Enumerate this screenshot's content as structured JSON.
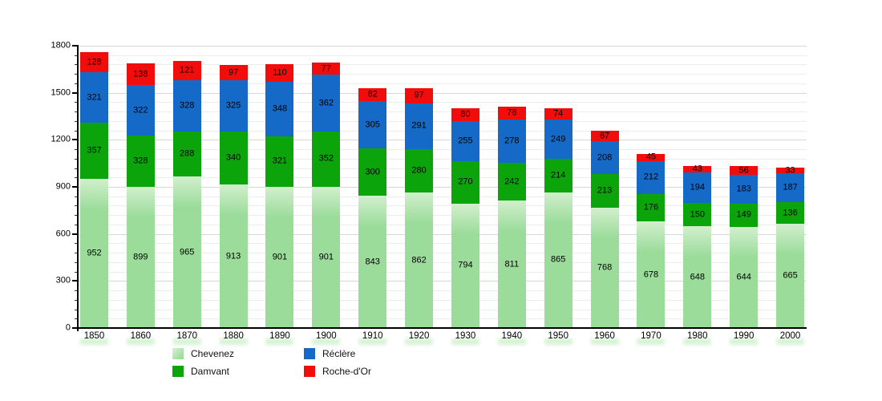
{
  "chart_data": {
    "type": "bar",
    "stacked": true,
    "categories": [
      "1850",
      "1860",
      "1870",
      "1880",
      "1890",
      "1900",
      "1910",
      "1920",
      "1930",
      "1940",
      "1950",
      "1960",
      "1970",
      "1980",
      "1990",
      "2000"
    ],
    "series": [
      {
        "name": "Chevenez",
        "color": "#9BDC9B",
        "values": [
          952,
          899,
          965,
          913,
          901,
          901,
          843,
          862,
          794,
          811,
          865,
          768,
          678,
          648,
          644,
          665
        ]
      },
      {
        "name": "Damvant",
        "color": "#0BA50B",
        "values": [
          357,
          328,
          288,
          340,
          321,
          352,
          300,
          280,
          270,
          242,
          214,
          213,
          176,
          150,
          149,
          136
        ]
      },
      {
        "name": "Réclère",
        "color": "#1569C7",
        "values": [
          321,
          322,
          328,
          325,
          348,
          362,
          305,
          291,
          255,
          278,
          249,
          208,
          212,
          194,
          183,
          187
        ]
      },
      {
        "name": "Roche-d'Or",
        "color": "#F20D0D",
        "values": [
          128,
          138,
          121,
          97,
          110,
          77,
          82,
          97,
          80,
          78,
          74,
          67,
          45,
          43,
          56,
          33
        ]
      }
    ],
    "xlabel": "",
    "ylabel": "",
    "title": "",
    "ylim": [
      0,
      1800
    ],
    "ytick_major": 300,
    "ytick_minor": 60,
    "y_tick_labels": [
      "0",
      "300",
      "600",
      "900",
      "1200",
      "1500",
      "1800"
    ],
    "grid": "on",
    "legend_position": "bottom"
  }
}
